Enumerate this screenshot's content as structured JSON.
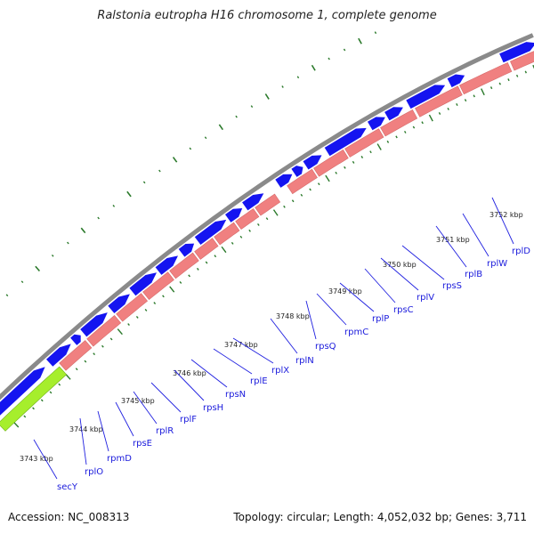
{
  "title": "Ralstonia eutropha H16 chromosome 1, complete genome",
  "accession": "Accession: NC_008313",
  "summary": "Topology: circular; Length: 4,052,032 bp; Genes: 3,711",
  "colors": {
    "backbone": "#8a8a8a",
    "forward_gene": "#1414f0",
    "reverse_gene": "#f08080",
    "highlight_gene": "#a6ee2c",
    "tick": "#2b7a2b",
    "label_line": "#2020e0",
    "label_text": "#1a1adc"
  },
  "coordinate_labels": [
    "3743 kbp",
    "3744 kbp",
    "3745 kbp",
    "3746 kbp",
    "3747 kbp",
    "3748 kbp",
    "3749 kbp",
    "3750 kbp",
    "3751 kbp",
    "3752 kbp"
  ],
  "genes": [
    "secY",
    "rplO",
    "rpmD",
    "rpsE",
    "rplR",
    "rplF",
    "rpsH",
    "rpsN",
    "rplE",
    "rplX",
    "rplN",
    "rpsQ",
    "rpmC",
    "rplP",
    "rpsC",
    "rplV",
    "rpsS",
    "rplB",
    "rplW",
    "rplD"
  ]
}
